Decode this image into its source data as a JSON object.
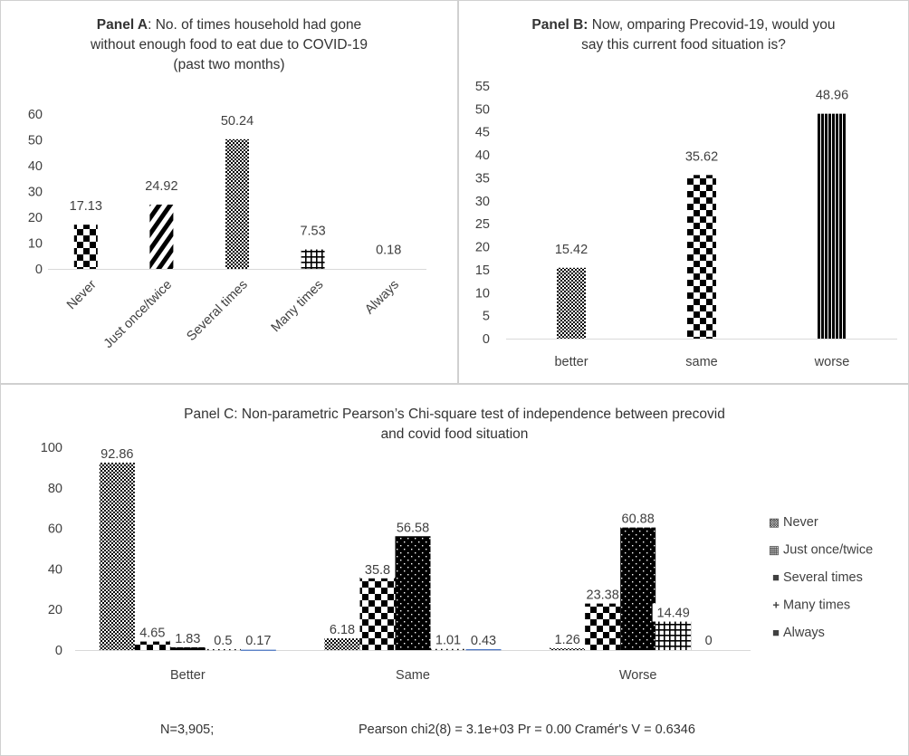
{
  "panels": {
    "a": {
      "title_bold": "Panel A",
      "title_line1": ": No. of times household had gone",
      "title_line2": "without enough food to eat due to COVID-19",
      "title_line3": "(past two months)"
    },
    "b": {
      "title_bold": "Panel B:",
      "title_line1": " Now, omparing Precovid-19,  would  you",
      "title_line2": "say this current food situation is?"
    },
    "c": {
      "title_line1": "Panel C: Non-parametric Pearson’s Chi-square test of independence between precovid",
      "title_line2": "and covid food situation",
      "footer_n": "N=3,905;",
      "footer_stats": "Pearson chi2(8) =  3.1e+03   Pr = 0.00   Cramér's V =   0.6346"
    }
  },
  "chart_data": [
    {
      "type": "bar",
      "title": "Panel A: No. of times household had gone without enough food to eat due to COVID-19 (past two months)",
      "categories": [
        "Never",
        "Just once/twice",
        "Several times",
        "Many times",
        "Always"
      ],
      "values": [
        17.13,
        24.92,
        50.24,
        7.53,
        0.18
      ],
      "value_labels": [
        "17.13",
        "24.92",
        "50.24",
        "7.53",
        "0.18"
      ],
      "patterns": [
        "checker",
        "diagonal",
        "dots",
        "grid",
        "none"
      ],
      "ylim": [
        0,
        60
      ],
      "yticks": [
        0,
        10,
        20,
        30,
        40,
        50,
        60
      ]
    },
    {
      "type": "bar",
      "title": "Panel B: Now, omparing Precovid-19, would you say this current food situation is?",
      "categories": [
        "better",
        "same",
        "worse"
      ],
      "values": [
        15.42,
        35.62,
        48.96
      ],
      "value_labels": [
        "15.42",
        "35.62",
        "48.96"
      ],
      "patterns": [
        "dots",
        "checker",
        "vstripe"
      ],
      "ylim": [
        0,
        55
      ],
      "yticks": [
        0,
        5,
        10,
        15,
        20,
        25,
        30,
        35,
        40,
        45,
        50,
        55
      ]
    },
    {
      "type": "bar",
      "title": "Panel C: Non-parametric Pearson’s Chi-square test of independence between precovid and covid food situation",
      "categories": [
        "Better",
        "Same",
        "Worse"
      ],
      "ylim": [
        0,
        100
      ],
      "yticks": [
        0,
        20,
        40,
        60,
        80,
        100
      ],
      "legend_position": "right",
      "series": [
        {
          "name": "Never",
          "values": [
            92.86,
            6.18,
            1.26
          ],
          "labels": [
            "92.86",
            "6.18",
            "1.26"
          ],
          "pattern": "dots",
          "legend_marker": "▩"
        },
        {
          "name": "Just once/twice",
          "values": [
            4.65,
            35.8,
            23.38
          ],
          "labels": [
            "4.65",
            "35.8",
            "23.38"
          ],
          "pattern": "checker",
          "legend_marker": "▦"
        },
        {
          "name": "Several times",
          "values": [
            1.83,
            56.58,
            60.88
          ],
          "labels": [
            "1.83",
            "56.58",
            "60.88"
          ],
          "pattern": "darkdots",
          "legend_marker": "■"
        },
        {
          "name": "Many times",
          "values": [
            0.5,
            1.01,
            14.49
          ],
          "labels": [
            "0.5",
            "1.01",
            "14.49"
          ],
          "pattern": "grid",
          "legend_marker": "+"
        },
        {
          "name": "Always",
          "values": [
            0.17,
            0.43,
            0
          ],
          "labels": [
            "0.17",
            "0.43",
            "0"
          ],
          "pattern": "solid",
          "color": "#4472c4",
          "legend_marker": "■"
        }
      ]
    }
  ]
}
